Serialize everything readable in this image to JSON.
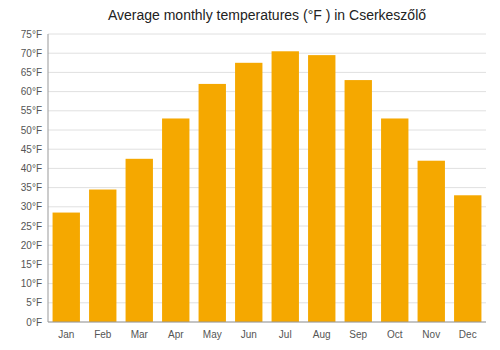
{
  "chart_data": {
    "type": "bar",
    "title": "Average monthly temperatures (°F ) in Cserkeszőlő",
    "categories": [
      "Jan",
      "Feb",
      "Mar",
      "Apr",
      "May",
      "Jun",
      "Jul",
      "Aug",
      "Sep",
      "Oct",
      "Nov",
      "Dec"
    ],
    "values": [
      28.5,
      34.5,
      42.5,
      53.0,
      62.0,
      67.5,
      70.5,
      69.5,
      63.0,
      53.0,
      42.0,
      33.0
    ],
    "color": "#F5A800",
    "ylim": [
      0,
      75
    ],
    "yticks": [
      {
        "value": 0,
        "label": "0°F"
      },
      {
        "value": 5,
        "label": "5°F"
      },
      {
        "value": 10,
        "label": "10°F"
      },
      {
        "value": 15,
        "label": "15°F"
      },
      {
        "value": 20,
        "label": "20°F"
      },
      {
        "value": 25,
        "label": "25°F"
      },
      {
        "value": 30,
        "label": "30°F"
      },
      {
        "value": 35,
        "label": "35°F"
      },
      {
        "value": 40,
        "label": "40°F"
      },
      {
        "value": 45,
        "label": "45°F"
      },
      {
        "value": 50,
        "label": "50°F"
      },
      {
        "value": 55,
        "label": "55°F"
      },
      {
        "value": 60,
        "label": "60°F"
      },
      {
        "value": 65,
        "label": "65°F"
      },
      {
        "value": 70,
        "label": "70°F"
      },
      {
        "value": 75,
        "label": "75°F"
      }
    ],
    "grid": true
  }
}
